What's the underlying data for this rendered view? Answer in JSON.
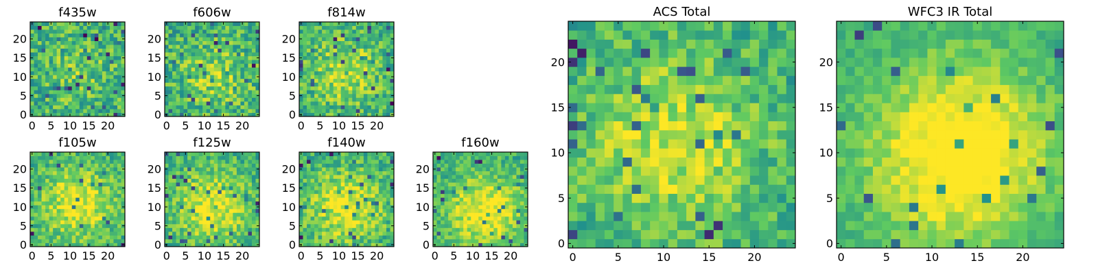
{
  "colormap": [
    "#440154",
    "#3b528b",
    "#21918c",
    "#5ec962",
    "#fde725"
  ],
  "chart_data": [
    {
      "type": "heatmap",
      "title": "f435w",
      "grid_size": 25,
      "xlim": [
        0,
        24
      ],
      "ylim": [
        0,
        24
      ],
      "xticks": [
        0,
        5,
        10,
        15,
        20
      ],
      "yticks": [
        0,
        5,
        10,
        15,
        20
      ],
      "center": [
        12,
        11
      ],
      "peak": 0.15,
      "noise": 0.22,
      "seed": 11
    },
    {
      "type": "heatmap",
      "title": "f606w",
      "grid_size": 25,
      "xlim": [
        0,
        24
      ],
      "ylim": [
        0,
        24
      ],
      "xticks": [
        0,
        5,
        10,
        15,
        20
      ],
      "yticks": [
        0,
        5,
        10,
        15,
        20
      ],
      "center": [
        13,
        10
      ],
      "peak": 0.2,
      "noise": 0.22,
      "seed": 23
    },
    {
      "type": "heatmap",
      "title": "f814w",
      "grid_size": 25,
      "xlim": [
        0,
        24
      ],
      "ylim": [
        0,
        24
      ],
      "xticks": [
        0,
        5,
        10,
        15,
        20
      ],
      "yticks": [
        0,
        5,
        10,
        15,
        20
      ],
      "center": [
        12,
        11
      ],
      "peak": 0.25,
      "noise": 0.2,
      "seed": 37
    },
    {
      "type": "heatmap",
      "title": "f105w",
      "grid_size": 25,
      "xlim": [
        0,
        24
      ],
      "ylim": [
        0,
        24
      ],
      "xticks": [
        0,
        5,
        10,
        15,
        20
      ],
      "yticks": [
        0,
        5,
        10,
        15,
        20
      ],
      "center": [
        12,
        11
      ],
      "peak": 0.35,
      "noise": 0.17,
      "seed": 41
    },
    {
      "type": "heatmap",
      "title": "f125w",
      "grid_size": 25,
      "xlim": [
        0,
        24
      ],
      "ylim": [
        0,
        24
      ],
      "xticks": [
        0,
        5,
        10,
        15,
        20
      ],
      "yticks": [
        0,
        5,
        10,
        15,
        20
      ],
      "center": [
        12,
        10
      ],
      "peak": 0.35,
      "noise": 0.17,
      "seed": 53
    },
    {
      "type": "heatmap",
      "title": "f140w",
      "grid_size": 25,
      "xlim": [
        0,
        24
      ],
      "ylim": [
        0,
        24
      ],
      "xticks": [
        0,
        5,
        10,
        15,
        20
      ],
      "yticks": [
        0,
        5,
        10,
        15,
        20
      ],
      "center": [
        12,
        10
      ],
      "peak": 0.35,
      "noise": 0.18,
      "seed": 67
    },
    {
      "type": "heatmap",
      "title": "f160w",
      "grid_size": 25,
      "xlim": [
        0,
        24
      ],
      "ylim": [
        0,
        24
      ],
      "xticks": [
        0,
        5,
        10,
        15,
        20
      ],
      "yticks": [
        0,
        5,
        10,
        15,
        20
      ],
      "center": [
        13,
        9
      ],
      "peak": 0.4,
      "noise": 0.16,
      "seed": 71
    },
    {
      "type": "heatmap",
      "title": "ACS Total",
      "grid_size": 25,
      "xlim": [
        0,
        24
      ],
      "ylim": [
        0,
        24
      ],
      "xticks": [
        0,
        5,
        10,
        15,
        20
      ],
      "yticks": [
        0,
        5,
        10,
        15,
        20
      ],
      "center": [
        11,
        11
      ],
      "peak": 0.3,
      "noise": 0.17,
      "seed": 83
    },
    {
      "type": "heatmap",
      "title": "WFC3 IR Total",
      "grid_size": 25,
      "xlim": [
        0,
        24
      ],
      "ylim": [
        0,
        24
      ],
      "xticks": [
        0,
        5,
        10,
        15,
        20
      ],
      "yticks": [
        0,
        5,
        10,
        15,
        20
      ],
      "center": [
        13,
        10
      ],
      "peak": 0.5,
      "noise": 0.1,
      "seed": 97
    }
  ]
}
